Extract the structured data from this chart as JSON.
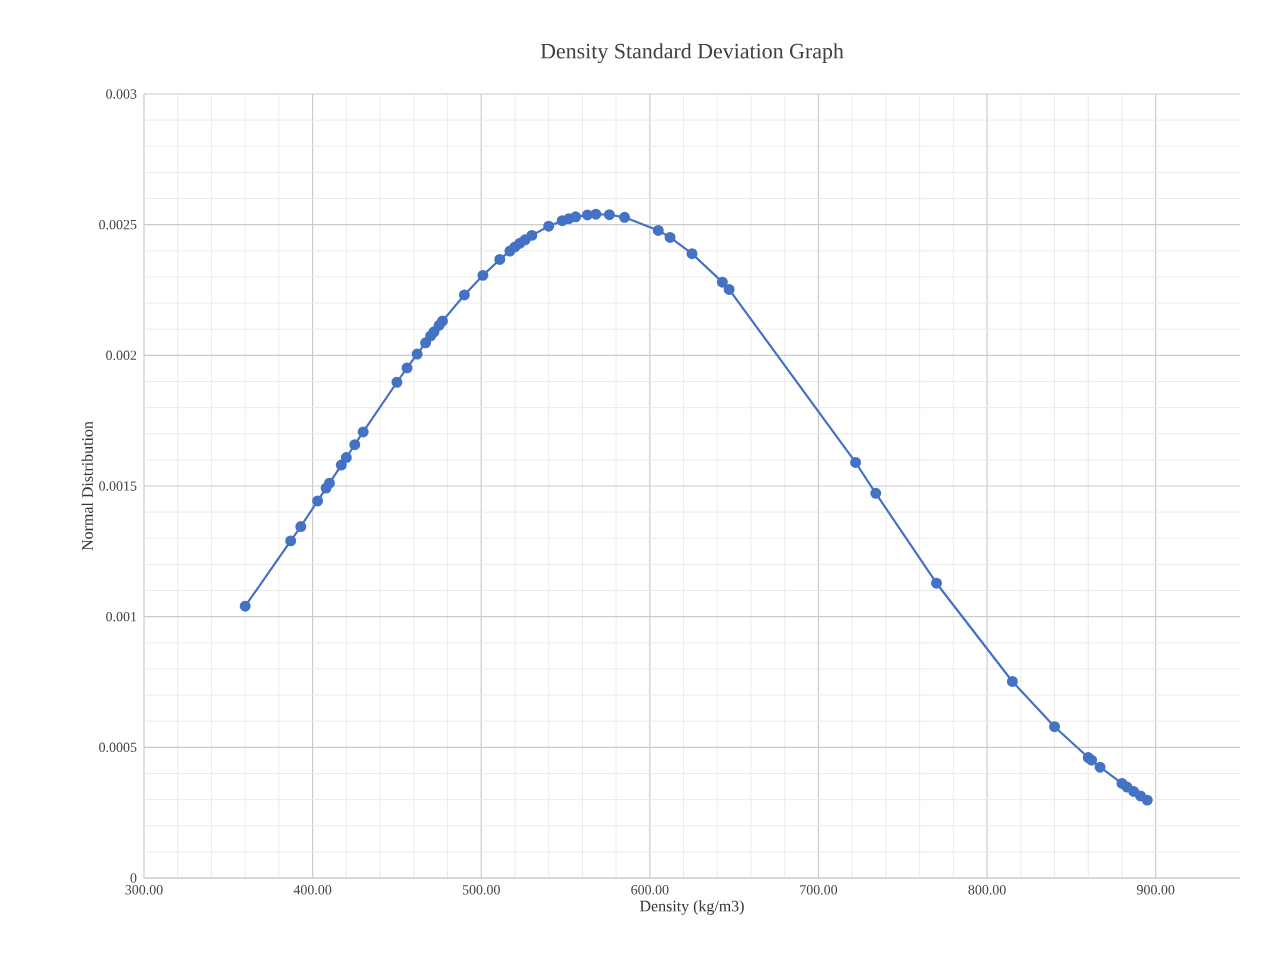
{
  "chart_data": {
    "type": "line",
    "title": "Density Standard Deviation Graph",
    "xlabel": "Density (kg/m3)",
    "ylabel": "Normal Distribution",
    "x": [
      360,
      387,
      393,
      403,
      408,
      410,
      417,
      420,
      425,
      430,
      449,
      450,
      456,
      462,
      467,
      470,
      472,
      475,
      477,
      490,
      501,
      510,
      511,
      517,
      520,
      523,
      526,
      530,
      540,
      548,
      552,
      556,
      563,
      566,
      568,
      576,
      585,
      605,
      612,
      625,
      643,
      647,
      722,
      734,
      770,
      815,
      838,
      840,
      860,
      862,
      867,
      880,
      883,
      887,
      891,
      895
    ],
    "series": [
      {
        "color": "#4472c4",
        "values": [
          0.00104,
          0.00129,
          0.001345,
          0.001443,
          0.001492,
          0.001511,
          0.00158,
          0.001609,
          0.001658,
          0.001707,
          null,
          0.001897,
          0.001952,
          0.002005,
          0.002048,
          0.002074,
          0.00209,
          0.002115,
          0.002131,
          0.002231,
          0.002306,
          null,
          0.002367,
          0.002399,
          0.002415,
          0.002429,
          0.002442,
          0.002459,
          0.002494,
          0.002515,
          0.002523,
          0.00253,
          0.002537,
          null,
          0.00254,
          0.002538,
          0.002528,
          0.002478,
          0.002451,
          0.002389,
          0.00228,
          0.002252,
          0.00159,
          0.001472,
          0.001128,
          0.000752,
          null,
          0.000579,
          0.000461,
          0.000451,
          0.000424,
          0.000362,
          0.000348,
          0.000331,
          0.000314,
          0.000298
        ]
      }
    ],
    "xlim": [
      300,
      950
    ],
    "ylim": [
      0,
      0.003
    ],
    "xticks": [
      {
        "value": 300,
        "label": "300.00"
      },
      {
        "value": 400,
        "label": "400.00"
      },
      {
        "value": 500,
        "label": "500.00"
      },
      {
        "value": 600,
        "label": "600.00"
      },
      {
        "value": 700,
        "label": "700.00"
      },
      {
        "value": 800,
        "label": "800.00"
      },
      {
        "value": 900,
        "label": "900.00"
      }
    ],
    "yticks": [
      0,
      0.0005,
      0.001,
      0.0015,
      0.002,
      0.0025,
      0.003
    ],
    "grid": true,
    "marker": "circle",
    "line_style": "solid"
  }
}
